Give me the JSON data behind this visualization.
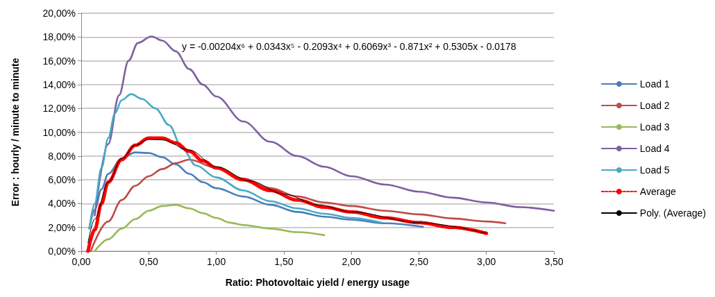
{
  "chart_data": {
    "type": "line",
    "xlabel": "Ratio: Photovoltaic yield / energy usage",
    "ylabel": "Error : hourly / minute to minute",
    "xlim": [
      0,
      3.5
    ],
    "xticks": [
      {
        "value": 0,
        "label": "0,00"
      },
      {
        "value": 0.5,
        "label": "0,50"
      },
      {
        "value": 1,
        "label": "1,00"
      },
      {
        "value": 1.5,
        "label": "1,50"
      },
      {
        "value": 2,
        "label": "2,00"
      },
      {
        "value": 2.5,
        "label": "2,50"
      },
      {
        "value": 3,
        "label": "3,00"
      },
      {
        "value": 3.5,
        "label": "3,50"
      }
    ],
    "ylim": [
      0,
      20
    ],
    "yticks": [
      {
        "value": 0,
        "label": "0,00%"
      },
      {
        "value": 2,
        "label": "2,00%"
      },
      {
        "value": 4,
        "label": "4,00%"
      },
      {
        "value": 6,
        "label": "6,00%"
      },
      {
        "value": 8,
        "label": "8,00%"
      },
      {
        "value": 10,
        "label": "10,00%"
      },
      {
        "value": 12,
        "label": "12,00%"
      },
      {
        "value": 14,
        "label": "14,00%"
      },
      {
        "value": 16,
        "label": "16,00%"
      },
      {
        "value": 18,
        "label": "18,00%"
      },
      {
        "value": 20,
        "label": "20,00%"
      }
    ],
    "grid": "y",
    "legend": "right",
    "marker": "none",
    "annotations": [
      "y = -0.00204x⁶ + 0.0343x⁵ - 0.2093x⁴ + 0.6069x³ - 0.871x² + 0.5305x - 0.0178"
    ],
    "series": [
      {
        "name": "Load 1",
        "color": "#4a7ebb",
        "line_style": "solid",
        "x": [
          0.06,
          0.1,
          0.15,
          0.2,
          0.3,
          0.4,
          0.5,
          0.6,
          0.7,
          0.8,
          0.9,
          1.0,
          1.2,
          1.4,
          1.6,
          1.8,
          2.0,
          2.25,
          2.53
        ],
        "values": [
          1.9,
          3.5,
          5.2,
          6.5,
          7.8,
          8.3,
          8.25,
          7.9,
          7.3,
          6.5,
          5.8,
          5.3,
          4.6,
          3.9,
          3.3,
          2.9,
          2.65,
          2.35,
          2.05
        ]
      },
      {
        "name": "Load 2",
        "color": "#be4b48",
        "line_style": "solid",
        "x": [
          0.07,
          0.2,
          0.3,
          0.4,
          0.5,
          0.6,
          0.7,
          0.8,
          1.0,
          1.2,
          1.4,
          1.6,
          1.8,
          2.0,
          2.25,
          2.5,
          2.75,
          3.0,
          3.14
        ],
        "values": [
          0,
          2.5,
          4.3,
          5.5,
          6.3,
          6.9,
          7.4,
          7.7,
          7.0,
          6.1,
          5.3,
          4.6,
          4.1,
          3.8,
          3.4,
          3.1,
          2.75,
          2.5,
          2.35
        ]
      },
      {
        "name": "Load 3",
        "color": "#98b954",
        "line_style": "solid",
        "x": [
          0.1,
          0.2,
          0.3,
          0.4,
          0.5,
          0.6,
          0.7,
          0.8,
          0.9,
          1.0,
          1.1,
          1.2,
          1.4,
          1.6,
          1.8
        ],
        "values": [
          0,
          1.0,
          1.9,
          2.7,
          3.4,
          3.8,
          3.9,
          3.6,
          3.2,
          2.8,
          2.4,
          2.2,
          1.9,
          1.6,
          1.35
        ]
      },
      {
        "name": "Load 4",
        "color": "#7d60a0",
        "line_style": "solid",
        "x": [
          0.1,
          0.2,
          0.28,
          0.35,
          0.42,
          0.52,
          0.6,
          0.7,
          0.8,
          0.9,
          1.0,
          1.2,
          1.4,
          1.6,
          1.8,
          2.0,
          2.25,
          2.5,
          2.75,
          3.0,
          3.25,
          3.5
        ],
        "values": [
          3.0,
          9.0,
          13.1,
          16.0,
          17.5,
          18.05,
          17.7,
          16.8,
          15.3,
          14.0,
          13.0,
          10.9,
          9.2,
          8.0,
          7.1,
          6.3,
          5.6,
          5.0,
          4.5,
          4.1,
          3.7,
          3.4
        ]
      },
      {
        "name": "Load 5",
        "color": "#46aac5",
        "line_style": "solid",
        "x": [
          0.06,
          0.1,
          0.15,
          0.2,
          0.25,
          0.3,
          0.37,
          0.45,
          0.55,
          0.65,
          0.75,
          0.85,
          1.0,
          1.2,
          1.4,
          1.6,
          1.8,
          2.0,
          2.22
        ],
        "values": [
          1.9,
          4,
          7,
          9.5,
          11.6,
          12.7,
          13.2,
          12.8,
          12.0,
          10.6,
          8.6,
          7.2,
          6.2,
          5.1,
          4.2,
          3.6,
          3.15,
          2.8,
          2.4
        ]
      },
      {
        "name": "Average",
        "color": "#ff0000",
        "line_style": "dashed",
        "x": [
          0.05,
          0.1,
          0.15,
          0.2,
          0.3,
          0.4,
          0.5,
          0.6,
          0.7,
          0.8,
          0.9,
          1.0,
          1.2,
          1.4,
          1.6,
          1.8,
          2.0,
          2.25,
          2.5,
          2.75,
          3.0
        ],
        "values": [
          0,
          1.8,
          4.0,
          5.8,
          7.7,
          8.9,
          9.5,
          9.5,
          9.1,
          8.4,
          7.6,
          7.0,
          6.0,
          5.1,
          4.3,
          3.7,
          3.3,
          2.8,
          2.4,
          2.0,
          1.5
        ]
      },
      {
        "name": "Poly. (Average)",
        "color": "#000000",
        "line_style": "solid",
        "x": [
          0.05,
          0.1,
          0.2,
          0.3,
          0.4,
          0.5,
          0.6,
          0.8,
          1.0,
          1.25,
          1.5,
          1.75,
          2.0,
          2.5,
          3.0
        ],
        "values": [
          0.7,
          2.7,
          5.8,
          7.8,
          8.9,
          9.4,
          9.35,
          8.5,
          7.1,
          5.9,
          4.8,
          3.9,
          3.3,
          2.4,
          1.5
        ]
      }
    ]
  }
}
